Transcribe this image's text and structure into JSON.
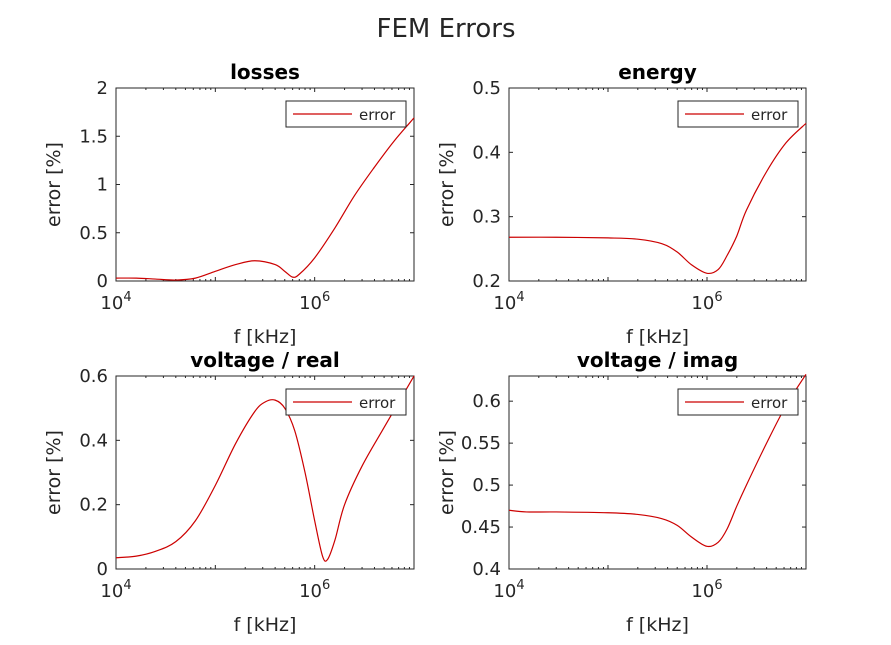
{
  "figure": {
    "title": "FEM Errors"
  },
  "chart_data": [
    {
      "type": "line",
      "title": "losses",
      "xlabel": "f [kHz]",
      "ylabel": "error [%]",
      "xscale": "log",
      "xlim": [
        10000,
        10000000
      ],
      "ylim": [
        0,
        2
      ],
      "xticks": [
        {
          "base": "10",
          "exp": "4",
          "value": 10000
        },
        {
          "base": "10",
          "exp": "6",
          "value": 1000000
        }
      ],
      "yticks": [
        {
          "label": "0",
          "value": 0
        },
        {
          "label": "0.5",
          "value": 0.5
        },
        {
          "label": "1",
          "value": 1
        },
        {
          "label": "1.5",
          "value": 1.5
        },
        {
          "label": "2",
          "value": 2
        }
      ],
      "grid": false,
      "legend": "top-right",
      "series": [
        {
          "name": "error",
          "color": "#cc0000",
          "x": [
            10000,
            16000,
            25000,
            40000,
            63000,
            100000,
            160000,
            250000,
            400000,
            500000,
            600000,
            700000,
            1000000,
            1600000,
            2500000,
            4000000,
            6300000,
            10000000
          ],
          "y": [
            0.03,
            0.03,
            0.02,
            0.01,
            0.03,
            0.1,
            0.17,
            0.21,
            0.17,
            0.1,
            0.04,
            0.07,
            0.24,
            0.55,
            0.88,
            1.18,
            1.45,
            1.69
          ]
        }
      ]
    },
    {
      "type": "line",
      "title": "energy",
      "xlabel": "f [kHz]",
      "ylabel": "error [%]",
      "xscale": "log",
      "xlim": [
        10000,
        10000000
      ],
      "ylim": [
        0.2,
        0.5
      ],
      "xticks": [
        {
          "base": "10",
          "exp": "4",
          "value": 10000
        },
        {
          "base": "10",
          "exp": "6",
          "value": 1000000
        }
      ],
      "yticks": [
        {
          "label": "0.2",
          "value": 0.2
        },
        {
          "label": "0.3",
          "value": 0.3
        },
        {
          "label": "0.4",
          "value": 0.4
        },
        {
          "label": "0.5",
          "value": 0.5
        }
      ],
      "grid": false,
      "legend": "top-right",
      "series": [
        {
          "name": "error",
          "color": "#cc0000",
          "x": [
            10000,
            30000,
            100000,
            200000,
            350000,
            500000,
            700000,
            1000000,
            1300000,
            1600000,
            2000000,
            2500000,
            4000000,
            6300000,
            10000000
          ],
          "y": [
            0.268,
            0.268,
            0.267,
            0.265,
            0.258,
            0.245,
            0.225,
            0.212,
            0.218,
            0.24,
            0.27,
            0.31,
            0.37,
            0.415,
            0.445
          ]
        }
      ]
    },
    {
      "type": "line",
      "title": "voltage / real",
      "xlabel": "f [kHz]",
      "ylabel": "error [%]",
      "xscale": "log",
      "xlim": [
        10000,
        10000000
      ],
      "ylim": [
        0,
        0.6
      ],
      "xticks": [
        {
          "base": "10",
          "exp": "4",
          "value": 10000
        },
        {
          "base": "10",
          "exp": "6",
          "value": 1000000
        }
      ],
      "yticks": [
        {
          "label": "0",
          "value": 0
        },
        {
          "label": "0.2",
          "value": 0.2
        },
        {
          "label": "0.4",
          "value": 0.4
        },
        {
          "label": "0.6",
          "value": 0.6
        }
      ],
      "grid": false,
      "legend": "top-right",
      "series": [
        {
          "name": "error",
          "color": "#cc0000",
          "x": [
            10000,
            16000,
            25000,
            40000,
            63000,
            100000,
            160000,
            250000,
            320000,
            400000,
            500000,
            630000,
            800000,
            1000000,
            1200000,
            1350000,
            1600000,
            2000000,
            3000000,
            5000000,
            10000000
          ],
          "y": [
            0.035,
            0.04,
            0.055,
            0.085,
            0.15,
            0.26,
            0.39,
            0.49,
            0.52,
            0.525,
            0.5,
            0.43,
            0.3,
            0.15,
            0.04,
            0.03,
            0.09,
            0.2,
            0.32,
            0.44,
            0.6
          ]
        }
      ]
    },
    {
      "type": "line",
      "title": "voltage / imag",
      "xlabel": "f [kHz]",
      "ylabel": "error [%]",
      "xscale": "log",
      "xlim": [
        10000,
        10000000
      ],
      "ylim": [
        0.4,
        0.63
      ],
      "xticks": [
        {
          "base": "10",
          "exp": "4",
          "value": 10000
        },
        {
          "base": "10",
          "exp": "6",
          "value": 1000000
        }
      ],
      "yticks": [
        {
          "label": "0.4",
          "value": 0.4
        },
        {
          "label": "0.45",
          "value": 0.45
        },
        {
          "label": "0.5",
          "value": 0.5
        },
        {
          "label": "0.55",
          "value": 0.55
        },
        {
          "label": "0.6",
          "value": 0.6
        }
      ],
      "grid": false,
      "legend": "top-right",
      "series": [
        {
          "name": "error",
          "color": "#cc0000",
          "x": [
            10000,
            15000,
            30000,
            100000,
            200000,
            350000,
            500000,
            700000,
            1000000,
            1300000,
            1600000,
            2000000,
            2500000,
            4000000,
            6300000,
            10000000
          ],
          "y": [
            0.47,
            0.468,
            0.468,
            0.467,
            0.465,
            0.46,
            0.452,
            0.438,
            0.427,
            0.432,
            0.448,
            0.475,
            0.5,
            0.55,
            0.595,
            0.632
          ]
        }
      ]
    }
  ]
}
